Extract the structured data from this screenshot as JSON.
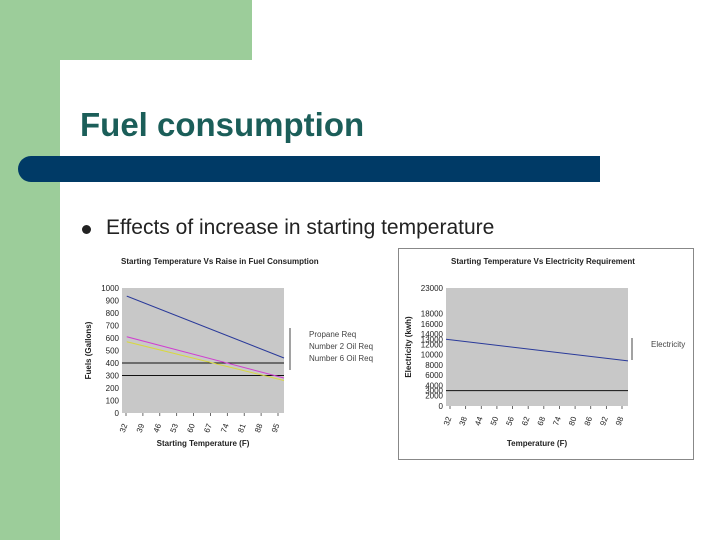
{
  "slide": {
    "title": "Fuel consumption",
    "bullet": "Effects of increase in starting temperature"
  },
  "colors": {
    "green": "#9ccd9a",
    "navy": "#003a66",
    "title": "#1b5e59",
    "plot_bg": "#c8c8c8",
    "propane": "#2a3a9a",
    "number2": "#d040d0",
    "number6": "#d8d840",
    "electricity": "#2a3a9a"
  },
  "chart_data": [
    {
      "type": "line",
      "title": "Starting Temperature Vs Raise in Fuel Consumption",
      "xlabel": "Starting Temperature (F)",
      "ylabel": "Fuels (Gallons)",
      "x_ticks": [
        "32",
        "39",
        "46",
        "53",
        "60",
        "67",
        "74",
        "81",
        "88",
        "95"
      ],
      "xlim": [
        30,
        98
      ],
      "ylim": [
        0,
        1000
      ],
      "y_ticks": [
        0,
        100,
        200,
        300,
        400,
        500,
        600,
        700,
        800,
        900,
        1000
      ],
      "grid": false,
      "legend": "right",
      "reference_lines": [
        400,
        300
      ],
      "series": [
        {
          "name": "Propane Req",
          "color": "#2a3a9a",
          "x": [
            32,
            98
          ],
          "y": [
            935,
            440
          ]
        },
        {
          "name": "Number 2 Oil Req",
          "color": "#d040d0",
          "x": [
            32,
            98
          ],
          "y": [
            610,
            280
          ]
        },
        {
          "name": "Number 6 Oil Req",
          "color": "#d8d840",
          "x": [
            32,
            98
          ],
          "y": [
            570,
            260
          ]
        }
      ]
    },
    {
      "type": "line",
      "title": "Starting Temperature Vs Electricity Requirement",
      "xlabel": "Temperature (F)",
      "ylabel": "Electricity (kwh)",
      "x_ticks": [
        "32",
        "38",
        "44",
        "50",
        "56",
        "62",
        "68",
        "74",
        "80",
        "86",
        "92",
        "98"
      ],
      "xlim": [
        32,
        98
      ],
      "ylim": [
        0,
        23000
      ],
      "y_ticks": [
        0,
        2000,
        3000,
        4000,
        6000,
        8000,
        10000,
        12000,
        13000,
        14000,
        16000,
        18000,
        23000
      ],
      "grid": false,
      "legend": "right",
      "reference_lines": [
        3000
      ],
      "series": [
        {
          "name": "Electricity",
          "color": "#2a3a9a",
          "x": [
            32,
            98
          ],
          "y": [
            13000,
            8800
          ]
        }
      ]
    }
  ]
}
